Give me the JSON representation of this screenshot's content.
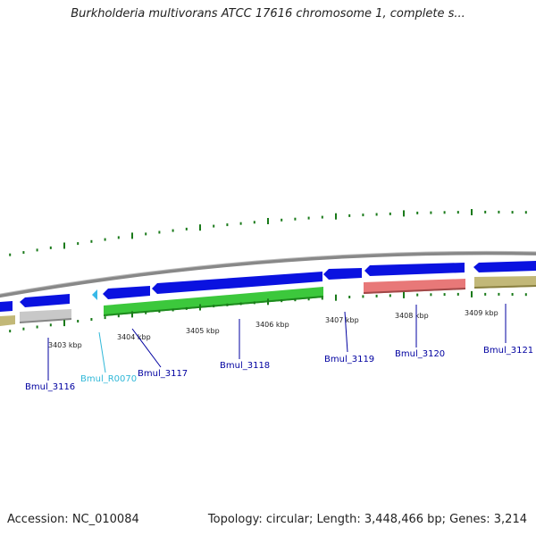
{
  "title": "Burkholderia multivorans ATCC 17616 chromosome 1, complete s...",
  "footer": {
    "accession": "Accession: NC_010084",
    "summary": "Topology: circular; Length: 3,448,466 bp; Genes: 3,214"
  },
  "colors": {
    "cds_forward": "#0a12e0",
    "cds_green": "#3cc83c",
    "cds_pink": "#e87878",
    "cds_olive": "#c2b878",
    "cds_gray": "#c8c8c8",
    "rna": "#38b8e8",
    "ticks": "#1a7a1a",
    "backbone": "#888888",
    "label_line": "#0000a0"
  },
  "scale_ticks": [
    {
      "label": "3403 kbp"
    },
    {
      "label": "3404 kbp"
    },
    {
      "label": "3405 kbp"
    },
    {
      "label": "3406 kbp"
    },
    {
      "label": "3407 kbp"
    },
    {
      "label": "3408 kbp"
    },
    {
      "label": "3409 kbp"
    }
  ],
  "gene_labels": [
    {
      "name": "Bmul_3116",
      "type": "cds"
    },
    {
      "name": "Bmul_R0070",
      "type": "rna"
    },
    {
      "name": "Bmul_3117",
      "type": "cds"
    },
    {
      "name": "Bmul_3118",
      "type": "cds"
    },
    {
      "name": "Bmul_3119",
      "type": "cds"
    },
    {
      "name": "Bmul_3120",
      "type": "cds"
    },
    {
      "name": "Bmul_3121",
      "type": "cds"
    }
  ]
}
